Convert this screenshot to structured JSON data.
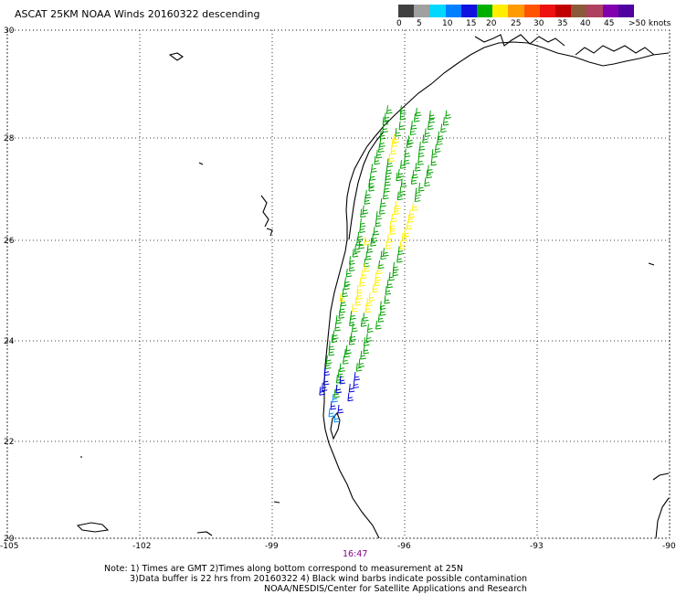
{
  "title": "ASCAT 25KM NOAA Winds 20160322 descending",
  "colorbar": {
    "labels": [
      "0",
      "5",
      "10",
      "15",
      "20",
      "25",
      "30",
      "35",
      "40",
      "45",
      ">50 knots"
    ],
    "colors": [
      "#404040",
      "#a0a0a0",
      "#00d8ff",
      "#0080ff",
      "#1010e0",
      "#00b000",
      "#ffee00",
      "#ff9a00",
      "#ff5500",
      "#ee1111",
      "#c00000",
      "#8a5a3a",
      "#b04060",
      "#8000b0",
      "#5000a0"
    ]
  },
  "latitude_labels": [
    "30",
    "28",
    "26",
    "24",
    "22",
    "20"
  ],
  "longitude_labels": [
    "-105",
    "-102",
    "-99",
    "-96",
    "-93",
    "-90"
  ],
  "time_label": "16:47",
  "notes": [
    "Note: 1) Times are GMT 2)Times along bottom correspond to measurement at 25N",
    "3)Data buffer is 22 hrs from 20160322 4) Black wind barbs indicate possible contamination",
    "NOAA/NESDIS/Center for Satellite Applications and Research"
  ],
  "wind_barb_colors": {
    "green": "#00a000",
    "yellow": "#ffee00",
    "blue": "#0000dd",
    "light_blue": "#0090ff"
  }
}
